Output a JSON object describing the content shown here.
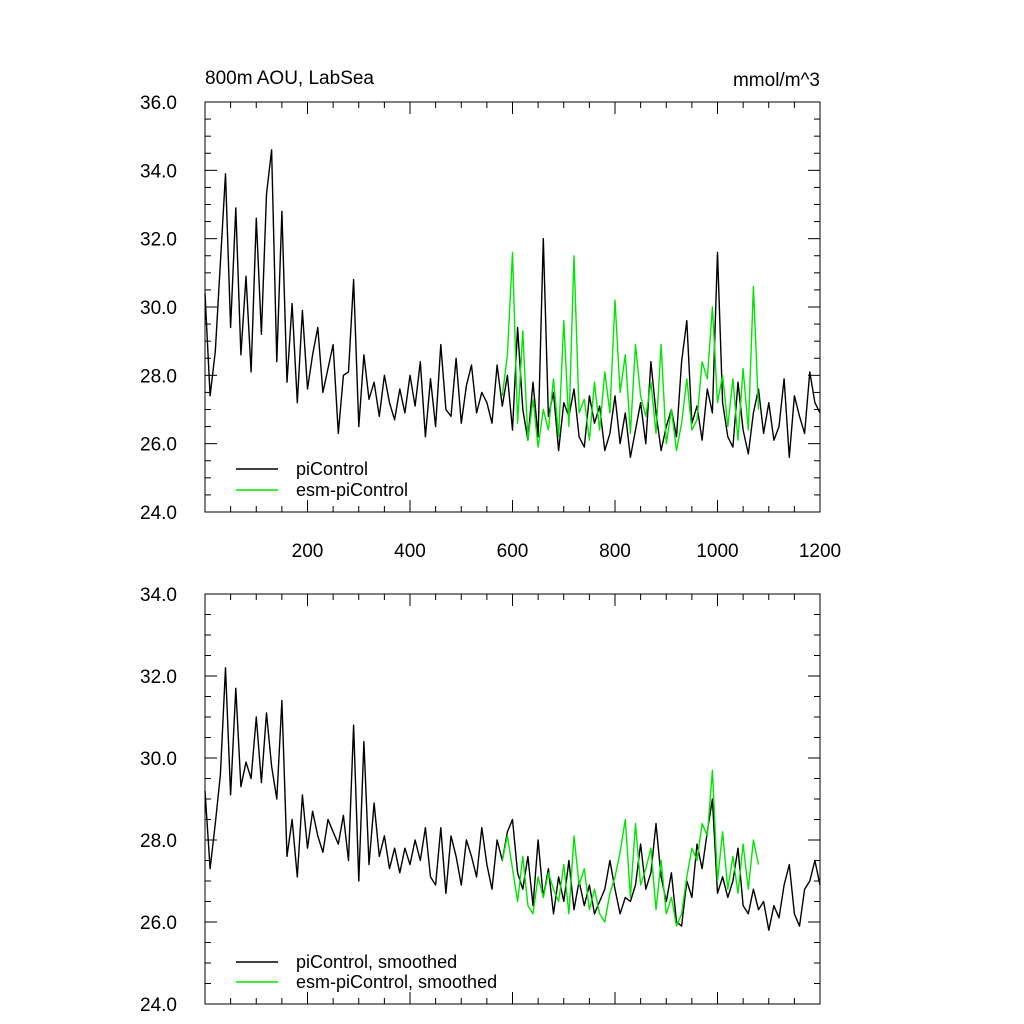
{
  "chart_data": [
    {
      "type": "line",
      "title": "800m AOU, LabSea",
      "units": "mmol/m^3",
      "xlim": [
        0,
        1200
      ],
      "ylim": [
        24,
        36
      ],
      "xticks": [
        200,
        400,
        600,
        800,
        1000,
        1200
      ],
      "xtick_labels": [
        "200",
        "400",
        "600",
        "800",
        "1000",
        "1200"
      ],
      "yticks": [
        24,
        26,
        28,
        30,
        32,
        34,
        36
      ],
      "ytick_labels": [
        "24.0",
        "26.0",
        "28.0",
        "30.0",
        "32.0",
        "34.0",
        "36.0"
      ],
      "legend": "bottom-left",
      "series": [
        {
          "name": "piControl",
          "color": "#000000",
          "x": [
            0,
            10,
            20,
            30,
            40,
            50,
            60,
            70,
            80,
            90,
            100,
            110,
            120,
            130,
            140,
            150,
            160,
            170,
            180,
            190,
            200,
            210,
            220,
            230,
            240,
            250,
            260,
            270,
            280,
            290,
            300,
            310,
            320,
            330,
            340,
            350,
            360,
            370,
            380,
            390,
            400,
            410,
            420,
            430,
            440,
            450,
            460,
            470,
            480,
            490,
            500,
            510,
            520,
            530,
            540,
            550,
            560,
            570,
            580,
            590,
            600,
            610,
            620,
            630,
            640,
            650,
            660,
            670,
            680,
            690,
            700,
            710,
            720,
            730,
            740,
            750,
            760,
            770,
            780,
            790,
            800,
            810,
            820,
            830,
            840,
            850,
            860,
            870,
            880,
            890,
            900,
            910,
            920,
            930,
            940,
            950,
            960,
            970,
            980,
            990,
            1000,
            1010,
            1020,
            1030,
            1040,
            1050,
            1060,
            1070,
            1080,
            1090,
            1100,
            1110,
            1120,
            1130,
            1140,
            1150,
            1160,
            1170,
            1180,
            1190,
            1200
          ],
          "y": [
            30.4,
            27.4,
            28.7,
            31.3,
            33.9,
            29.4,
            32.9,
            28.6,
            30.9,
            28.1,
            32.6,
            29.2,
            33.3,
            34.6,
            28.4,
            32.8,
            27.8,
            30.1,
            27.2,
            29.9,
            27.6,
            28.6,
            29.4,
            27.5,
            28.2,
            28.9,
            26.3,
            28.0,
            28.1,
            30.8,
            26.5,
            28.6,
            27.3,
            27.8,
            26.8,
            28.0,
            27.2,
            26.7,
            27.6,
            26.9,
            28.0,
            27.1,
            28.4,
            26.2,
            27.9,
            26.5,
            28.9,
            27.0,
            26.8,
            28.5,
            26.6,
            27.7,
            28.3,
            26.9,
            27.5,
            27.2,
            26.6,
            28.3,
            27.1,
            28.0,
            26.4,
            29.4,
            27.0,
            26.1,
            27.8,
            26.2,
            32.0,
            26.8,
            27.5,
            25.8,
            27.2,
            26.8,
            27.6,
            26.2,
            25.9,
            27.4,
            26.6,
            27.1,
            25.8,
            26.3,
            27.4,
            26.0,
            26.9,
            25.6,
            26.4,
            27.2,
            26.0,
            28.4,
            26.9,
            25.8,
            26.5,
            27.0,
            26.2,
            28.4,
            29.6,
            26.6,
            27.1,
            26.1,
            27.6,
            26.9,
            31.6,
            27.2,
            26.2,
            25.9,
            27.8,
            26.4,
            25.7,
            26.9,
            27.6,
            26.3,
            27.2,
            26.1,
            26.5,
            27.9,
            25.6,
            27.4,
            26.8,
            26.3,
            28.1,
            27.2,
            26.9
          ]
        },
        {
          "name": "esm-piControl",
          "color": "#00e600",
          "x": [
            580,
            590,
            600,
            610,
            620,
            630,
            640,
            650,
            660,
            670,
            680,
            690,
            700,
            710,
            720,
            730,
            740,
            750,
            760,
            770,
            780,
            790,
            800,
            810,
            820,
            830,
            840,
            850,
            860,
            870,
            880,
            890,
            900,
            910,
            920,
            930,
            940,
            950,
            960,
            970,
            980,
            990,
            1000,
            1010,
            1020,
            1030,
            1040,
            1050,
            1060,
            1070,
            1080
          ],
          "y": [
            27.4,
            28.6,
            31.6,
            26.6,
            29.3,
            26.1,
            27.3,
            25.9,
            27.0,
            26.4,
            27.9,
            26.2,
            29.6,
            26.5,
            31.5,
            26.9,
            27.3,
            26.1,
            27.8,
            26.4,
            28.1,
            26.9,
            30.2,
            27.5,
            28.6,
            26.3,
            28.9,
            27.4,
            26.8,
            27.8,
            26.3,
            28.9,
            26.0,
            27.0,
            25.8,
            26.6,
            27.9,
            26.4,
            26.7,
            28.4,
            27.9,
            30.0,
            27.2,
            28.0,
            26.5,
            27.9,
            26.1,
            28.2,
            26.4,
            30.6,
            27.0
          ]
        }
      ]
    },
    {
      "type": "line",
      "xlim": [
        0,
        1200
      ],
      "ylim": [
        24,
        34
      ],
      "xticks": [
        200,
        400,
        600,
        800,
        1000,
        1200
      ],
      "yticks": [
        24,
        26,
        28,
        30,
        32,
        34
      ],
      "ytick_labels": [
        "24.0",
        "26.0",
        "28.0",
        "30.0",
        "32.0",
        "34.0"
      ],
      "legend": "bottom-left",
      "series": [
        {
          "name": "piControl, smoothed",
          "color": "#000000",
          "x": [
            0,
            10,
            20,
            30,
            40,
            50,
            60,
            70,
            80,
            90,
            100,
            110,
            120,
            130,
            140,
            150,
            160,
            170,
            180,
            190,
            200,
            210,
            220,
            230,
            240,
            250,
            260,
            270,
            280,
            290,
            300,
            310,
            320,
            330,
            340,
            350,
            360,
            370,
            380,
            390,
            400,
            410,
            420,
            430,
            440,
            450,
            460,
            470,
            480,
            490,
            500,
            510,
            520,
            530,
            540,
            550,
            560,
            570,
            580,
            590,
            600,
            610,
            620,
            630,
            640,
            650,
            660,
            670,
            680,
            690,
            700,
            710,
            720,
            730,
            740,
            750,
            760,
            770,
            780,
            790,
            800,
            810,
            820,
            830,
            840,
            850,
            860,
            870,
            880,
            890,
            900,
            910,
            920,
            930,
            940,
            950,
            960,
            970,
            980,
            990,
            1000,
            1010,
            1020,
            1030,
            1040,
            1050,
            1060,
            1070,
            1080,
            1090,
            1100,
            1110,
            1120,
            1130,
            1140,
            1150,
            1160,
            1170,
            1180,
            1190,
            1200
          ],
          "y": [
            29.2,
            27.3,
            28.4,
            29.6,
            32.2,
            29.1,
            31.7,
            29.3,
            29.9,
            29.5,
            31.0,
            29.4,
            31.1,
            29.8,
            29.0,
            31.4,
            27.6,
            28.5,
            27.1,
            29.1,
            27.8,
            28.7,
            28.1,
            27.7,
            28.5,
            28.2,
            27.9,
            28.6,
            27.5,
            30.8,
            27.0,
            30.4,
            27.4,
            28.9,
            27.6,
            28.1,
            27.3,
            27.8,
            27.2,
            27.8,
            27.4,
            28.0,
            27.5,
            28.3,
            27.1,
            26.9,
            28.3,
            26.7,
            28.1,
            27.6,
            26.9,
            28.0,
            27.6,
            27.1,
            28.3,
            27.4,
            26.8,
            28.0,
            27.5,
            28.2,
            28.5,
            27.2,
            26.8,
            27.6,
            26.4,
            28.0,
            26.6,
            27.3,
            26.2,
            27.1,
            26.5,
            27.5,
            26.3,
            27.0,
            26.4,
            26.9,
            26.2,
            26.5,
            26.8,
            27.5,
            26.8,
            26.2,
            26.6,
            26.5,
            26.9,
            27.9,
            26.8,
            27.2,
            28.4,
            27.1,
            26.5,
            27.2,
            26.0,
            25.9,
            27.0,
            26.6,
            27.9,
            27.3,
            28.2,
            29.0,
            26.7,
            27.1,
            26.6,
            27.0,
            27.8,
            26.4,
            26.2,
            26.8,
            26.3,
            26.5,
            25.8,
            26.4,
            26.1,
            26.9,
            27.4,
            26.2,
            25.9,
            26.8,
            27.0,
            27.5,
            26.9
          ]
        },
        {
          "name": "esm-piControl, smoothed",
          "color": "#00e600",
          "x": [
            580,
            590,
            600,
            610,
            620,
            630,
            640,
            650,
            660,
            670,
            680,
            690,
            700,
            710,
            720,
            730,
            740,
            750,
            760,
            770,
            780,
            790,
            800,
            810,
            820,
            830,
            840,
            850,
            860,
            870,
            880,
            890,
            900,
            910,
            920,
            930,
            940,
            950,
            960,
            970,
            980,
            990,
            1000,
            1010,
            1020,
            1030,
            1040,
            1050,
            1060,
            1070,
            1080
          ],
          "y": [
            27.5,
            28.1,
            27.3,
            26.5,
            27.6,
            26.4,
            26.2,
            27.1,
            26.6,
            27.2,
            26.8,
            26.5,
            27.4,
            26.2,
            28.1,
            26.9,
            27.3,
            26.3,
            26.8,
            26.2,
            26.0,
            26.7,
            27.1,
            27.7,
            28.5,
            26.6,
            28.4,
            26.9,
            27.3,
            27.8,
            26.3,
            27.5,
            26.2,
            26.6,
            25.9,
            26.2,
            27.1,
            27.8,
            27.5,
            28.4,
            28.1,
            29.7,
            27.0,
            28.2,
            26.8,
            27.6,
            26.7,
            27.9,
            26.8,
            28.0,
            27.4
          ]
        }
      ]
    }
  ]
}
